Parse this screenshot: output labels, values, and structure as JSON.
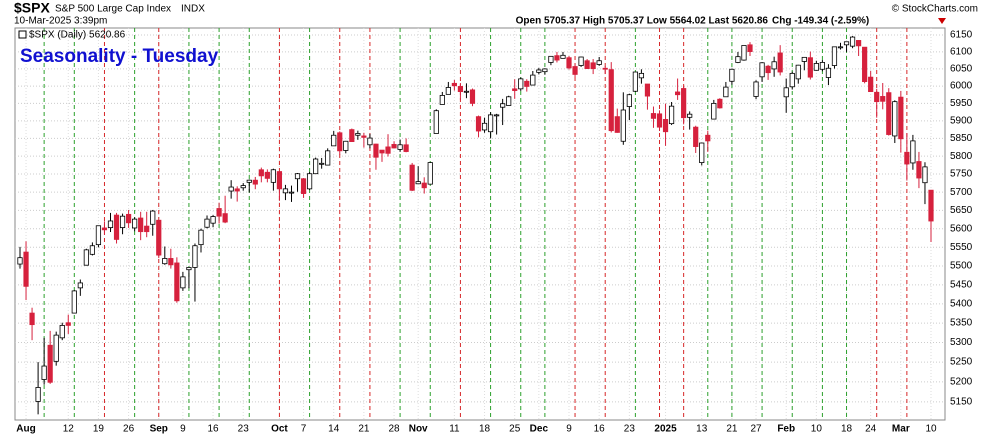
{
  "header": {
    "symbol": "$SPX",
    "name": "S&P 500 Large Cap Index",
    "exchange": "INDX",
    "timestamp": "10-Mar-2025 3:39pm",
    "quote": "Open 5705.37 High 5705.37 Low 5564.02 Last 5620.86",
    "change": "Chg -149.34 (-2.59%)",
    "credit": "© StockCharts.com"
  },
  "chart_data": {
    "type": "candlestick",
    "title": "Seasonality - Tuesday",
    "legend": "$SPX (Daily) 5620.86",
    "up_color": "#ffffff",
    "down_color": "#d6213d",
    "log_scale": true,
    "grid": true,
    "ylim": [
      5105,
      6171
    ],
    "yticks": [
      5150,
      5200,
      5250,
      5300,
      5350,
      5400,
      5450,
      5500,
      5550,
      5600,
      5650,
      5700,
      5750,
      5800,
      5850,
      5900,
      5950,
      6000,
      6050,
      6100,
      6150
    ],
    "categories": [
      null,
      "Aug",
      null,
      null,
      null,
      null,
      null,
      null,
      "12",
      null,
      null,
      null,
      null,
      "19",
      null,
      null,
      null,
      null,
      "26",
      null,
      null,
      null,
      null,
      "Sep",
      null,
      null,
      null,
      "9",
      null,
      null,
      null,
      null,
      "16",
      null,
      null,
      null,
      null,
      "23",
      null,
      null,
      null,
      null,
      null,
      "Oct",
      null,
      null,
      null,
      "7",
      null,
      null,
      null,
      null,
      "14",
      null,
      null,
      null,
      null,
      "21",
      null,
      null,
      null,
      null,
      "28",
      null,
      null,
      null,
      "Nov",
      null,
      null,
      null,
      null,
      null,
      "11",
      null,
      null,
      null,
      null,
      "18",
      null,
      null,
      null,
      null,
      "25",
      null,
      null,
      null,
      "Dec",
      null,
      null,
      null,
      null,
      "9",
      null,
      null,
      null,
      null,
      "16",
      null,
      null,
      null,
      null,
      "23",
      null,
      null,
      null,
      null,
      null,
      "2025",
      null,
      null,
      null,
      null,
      null,
      "13",
      null,
      null,
      null,
      null,
      "21",
      null,
      null,
      null,
      "27",
      null,
      null,
      null,
      null,
      "Feb",
      null,
      null,
      null,
      null,
      "10",
      null,
      null,
      null,
      null,
      "18",
      null,
      null,
      null,
      "24",
      null,
      null,
      null,
      null,
      "Mar",
      null,
      null,
      null,
      null,
      "10"
    ],
    "open": [
      5505,
      5537,
      5376,
      5151,
      5206,
      5293,
      5252,
      5312,
      5351,
      5376,
      5442,
      5502,
      5531,
      5557,
      5602,
      5603,
      5637,
      5603,
      5639,
      5602,
      5629,
      5607,
      5612,
      5623,
      5506,
      5520,
      5508,
      5442,
      5490,
      5496,
      5557,
      5604,
      5615,
      5655,
      5641,
      5703,
      5709,
      5712,
      5727,
      5733,
      5762,
      5755,
      5727,
      5757,
      5698,
      5698,
      5737,
      5737,
      5709,
      5751,
      5778,
      5775,
      5829,
      5866,
      5816,
      5875,
      5859,
      5857,
      5832,
      5834,
      5817,
      5826,
      5833,
      5819,
      5832,
      5775,
      5723,
      5725,
      5722,
      5864,
      5947,
      5976,
      6008,
      5999,
      5985,
      5989,
      5912,
      5874,
      5869,
      5917,
      5939,
      5944,
      5992,
      5992,
      6014,
      6003,
      6040,
      6042,
      6069,
      6089,
      6081,
      6083,
      6057,
      6060,
      6074,
      6068,
      6063,
      6052,
      6048,
      5912,
      5842,
      5941,
      5985,
      6024,
      6006,
      5921,
      5920,
      5904,
      5892,
      5983,
      5993,
      5910,
      5882,
      5782,
      5859,
      5905,
      5962,
      5969,
      6014,
      6069,
      6076,
      6121,
      5970,
      6027,
      6058,
      6050,
      6097,
      5969,
      5998,
      6021,
      6072,
      6083,
      6046,
      6049,
      6025,
      6060,
      6115,
      6121,
      6117,
      6134,
      6114,
      6026,
      5982,
      5970,
      5981,
      5857,
      5968,
      5811,
      5781,
      5785,
      5726,
      5705.37
    ],
    "high": [
      5551,
      5566,
      5390,
      5250,
      5312,
      5330,
      5328,
      5351,
      5372,
      5436,
      5464,
      5546,
      5563,
      5608,
      5620,
      5643,
      5643,
      5641,
      5651,
      5631,
      5646,
      5646,
      5651,
      5623,
      5552,
      5546,
      5523,
      5484,
      5497,
      5560,
      5600,
      5636,
      5637,
      5671,
      5690,
      5733,
      5716,
      5725,
      5735,
      5742,
      5768,
      5763,
      5765,
      5757,
      5720,
      5718,
      5753,
      5739,
      5756,
      5796,
      5795,
      5822,
      5871,
      5870,
      5843,
      5878,
      5872,
      5866,
      5863,
      5835,
      5817,
      5862,
      5842,
      5847,
      5850,
      5781,
      5772,
      5741,
      5783,
      5933,
      5983,
      6012,
      6018,
      6009,
      6008,
      5993,
      5915,
      5909,
      5925,
      5920,
      5963,
      5972,
      6020,
      6025,
      6020,
      6044,
      6053,
      6052,
      6087,
      6100,
      6100,
      6088,
      6065,
      6086,
      6079,
      6079,
      6085,
      6058,
      6070,
      5935,
      5982,
      5978,
      6041,
      6049,
      6006,
      5941,
      5930,
      5949,
      5954,
      6022,
      6000,
      5927,
      5886,
      5838,
      5872,
      5960,
      5965,
      6012,
      6051,
      6100,
      6119,
      6129,
      6017,
      6070,
      6062,
      6086,
      6120,
      6022,
      6042,
      6062,
      6084,
      6101,
      6074,
      6076,
      6064,
      6116,
      6127,
      6130,
      6147,
      6135,
      6114,
      6044,
      5992,
      6009,
      5994,
      5959,
      5986,
      5865,
      5860,
      5812,
      5783,
      5705.37
    ],
    "low": [
      5493,
      5410,
      5306,
      5119,
      5193,
      5195,
      5241,
      5306,
      5322,
      5376,
      5421,
      5501,
      5528,
      5550,
      5584,
      5591,
      5560,
      5585,
      5602,
      5593,
      5569,
      5577,
      5581,
      5521,
      5503,
      5493,
      5403,
      5434,
      5441,
      5406,
      5536,
      5601,
      5604,
      5614,
      5615,
      5682,
      5674,
      5704,
      5699,
      5708,
      5727,
      5727,
      5704,
      5676,
      5678,
      5673,
      5701,
      5684,
      5706,
      5751,
      5765,
      5775,
      5829,
      5804,
      5808,
      5840,
      5846,
      5824,
      5822,
      5762,
      5784,
      5799,
      5823,
      5812,
      5811,
      5703,
      5723,
      5696,
      5722,
      5864,
      5947,
      5976,
      5987,
      5960,
      5965,
      5942,
      5853,
      5866,
      5850,
      5861,
      5888,
      5944,
      5963,
      5986,
      5984,
      6003,
      6034,
      6033,
      6061,
      6069,
      6081,
      6048,
      6026,
      6056,
      6051,
      6035,
      6059,
      6035,
      5867,
      5866,
      5832,
      5902,
      5983,
      6007,
      5932,
      5880,
      5871,
      5829,
      5888,
      5960,
      5890,
      5875,
      5809,
      5774,
      5812,
      5905,
      5935,
      5969,
      6004,
      6067,
      6074,
      6088,
      5962,
      6012,
      6018,
      6027,
      6031,
      5923,
      5990,
      6007,
      6046,
      6019,
      6045,
      6043,
      6003,
      6051,
      6107,
      6100,
      6111,
      6088,
      6008,
      5983,
      5909,
      5933,
      5858,
      5837,
      5810,
      5732,
      5762,
      5711,
      5667,
      5564.02
    ],
    "close": [
      5522,
      5446,
      5346,
      5186,
      5240,
      5199,
      5319,
      5344,
      5344,
      5434,
      5455,
      5543,
      5554,
      5608,
      5597,
      5621,
      5571,
      5634,
      5616,
      5626,
      5592,
      5592,
      5648,
      5529,
      5520,
      5503,
      5408,
      5471,
      5496,
      5554,
      5596,
      5626,
      5633,
      5634,
      5618,
      5714,
      5703,
      5718,
      5733,
      5722,
      5745,
      5738,
      5762,
      5709,
      5709,
      5700,
      5751,
      5696,
      5751,
      5792,
      5780,
      5815,
      5859,
      5815,
      5842,
      5841,
      5864,
      5853,
      5851,
      5797,
      5809,
      5808,
      5823,
      5832,
      5813,
      5705,
      5729,
      5712,
      5782,
      5929,
      5973,
      5996,
      6001,
      5984,
      5985,
      5950,
      5871,
      5893,
      5917,
      5917,
      5949,
      5969,
      5987,
      6021,
      5999,
      6032,
      6047,
      6050,
      6087,
      6076,
      6090,
      6053,
      6034,
      6085,
      6051,
      6051,
      6074,
      6051,
      5872,
      5867,
      5931,
      5975,
      6041,
      6037,
      5971,
      5907,
      5882,
      5869,
      5942,
      5975,
      5909,
      5919,
      5827,
      5837,
      5843,
      5950,
      5937,
      5997,
      6049,
      6086,
      6119,
      6101,
      6012,
      6068,
      6039,
      6071,
      6041,
      5995,
      6037,
      6061,
      6084,
      6026,
      6066,
      6069,
      6052,
      6115,
      6115,
      6130,
      6144,
      6118,
      6013,
      5984,
      5955,
      5956,
      5861,
      5955,
      5849,
      5778,
      5843,
      5739,
      5770,
      5620.86
    ],
    "markers": [
      {
        "at": 4,
        "color": "#2ca02c"
      },
      {
        "at": 9,
        "color": "#2ca02c"
      },
      {
        "at": 14,
        "color": "#d62728"
      },
      {
        "at": 19,
        "color": "#2ca02c"
      },
      {
        "at": 23,
        "color": "#d62728"
      },
      {
        "at": 28,
        "color": "#2ca02c"
      },
      {
        "at": 33,
        "color": "#2ca02c"
      },
      {
        "at": 38,
        "color": "#2ca02c"
      },
      {
        "at": 43,
        "color": "#d62728"
      },
      {
        "at": 48,
        "color": "#2ca02c"
      },
      {
        "at": 53,
        "color": "#d62728"
      },
      {
        "at": 58,
        "color": "#d62728"
      },
      {
        "at": 63,
        "color": "#2ca02c"
      },
      {
        "at": 68,
        "color": "#2ca02c"
      },
      {
        "at": 73,
        "color": "#d62728"
      },
      {
        "at": 78,
        "color": "#2ca02c"
      },
      {
        "at": 83,
        "color": "#2ca02c"
      },
      {
        "at": 87,
        "color": "#2ca02c"
      },
      {
        "at": 92,
        "color": "#d62728"
      },
      {
        "at": 97,
        "color": "#d62728"
      },
      {
        "at": 102,
        "color": "#2ca02c"
      },
      {
        "at": 106,
        "color": "#d62728"
      },
      {
        "at": 110,
        "color": "#d62728"
      },
      {
        "at": 114,
        "color": "#2ca02c"
      },
      {
        "at": 118,
        "color": "#2ca02c"
      },
      {
        "at": 123,
        "color": "#2ca02c"
      },
      {
        "at": 128,
        "color": "#2ca02c"
      },
      {
        "at": 133,
        "color": "#2ca02c"
      },
      {
        "at": 137,
        "color": "#2ca02c"
      },
      {
        "at": 142,
        "color": "#d62728"
      },
      {
        "at": 147,
        "color": "#d62728"
      }
    ]
  }
}
